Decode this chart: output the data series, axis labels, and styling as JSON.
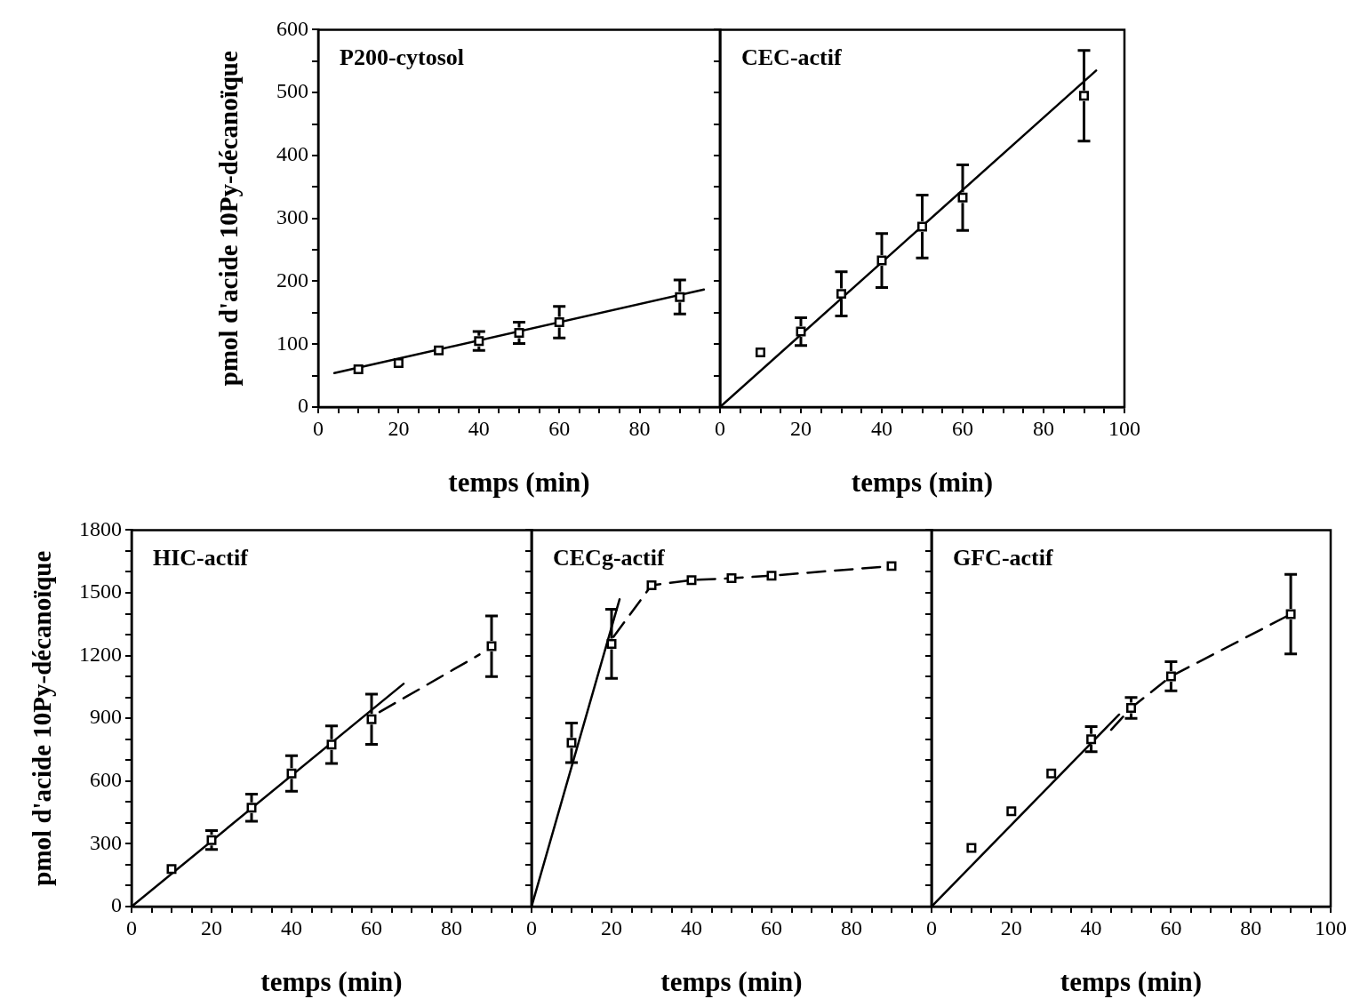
{
  "chart_data": [
    {
      "type": "scatter",
      "title": "P200-cytosol",
      "xlabel": "temps (min)",
      "ylabel": "pmol d'acide 10Py-décanoïque",
      "x": [
        10,
        20,
        30,
        40,
        50,
        60,
        90
      ],
      "xlim": [
        0,
        100
      ],
      "ylim": [
        0,
        600
      ],
      "xticks": [
        0,
        {
          "value": 5,
          "label": null
        },
        {
          "value": 10,
          "label": null
        },
        {
          "value": 15,
          "label": null
        },
        20,
        {
          "value": 25,
          "label": null
        },
        {
          "value": 30,
          "label": null
        },
        {
          "value": 35,
          "label": null
        },
        40,
        {
          "value": 45,
          "label": null
        },
        {
          "value": 50,
          "label": null
        },
        {
          "value": 55,
          "label": null
        },
        60,
        {
          "value": 65,
          "label": null
        },
        {
          "value": 70,
          "label": null
        },
        {
          "value": 75,
          "label": null
        },
        80,
        {
          "value": 85,
          "label": null
        },
        {
          "value": 90,
          "label": null
        },
        {
          "value": 95,
          "label": null
        },
        {
          "value": 100,
          "label": null
        }
      ],
      "yticks": [
        0,
        {
          "value": 50,
          "label": null
        },
        100,
        {
          "value": 150,
          "label": null
        },
        200,
        {
          "value": 250,
          "label": null
        },
        300,
        {
          "value": 350,
          "label": null
        },
        400,
        {
          "value": 450,
          "label": null
        },
        500,
        {
          "value": 550,
          "label": null
        },
        600
      ],
      "series": [
        {
          "type": "scatter",
          "color": "#000000",
          "marker": "square",
          "values": [
            60,
            70,
            90,
            105,
            118,
            135,
            175
          ],
          "errors": [
            null,
            null,
            null,
            15,
            17,
            25,
            27
          ]
        },
        {
          "type": "line",
          "color": "#000000",
          "marker": "none",
          "line_style": "solid",
          "x": [
            4,
            96
          ],
          "values": [
            54,
            187
          ]
        }
      ]
    },
    {
      "type": "scatter",
      "title": "CEC-actif",
      "xlabel": "temps (min)",
      "x": [
        10,
        20,
        30,
        40,
        50,
        60,
        90
      ],
      "xlim": [
        0,
        100
      ],
      "ylim": [
        0,
        600
      ],
      "tick_labels": "x",
      "xticks": [
        0,
        {
          "value": 5,
          "label": null
        },
        {
          "value": 10,
          "label": null
        },
        {
          "value": 15,
          "label": null
        },
        20,
        {
          "value": 25,
          "label": null
        },
        {
          "value": 30,
          "label": null
        },
        {
          "value": 35,
          "label": null
        },
        40,
        {
          "value": 45,
          "label": null
        },
        {
          "value": 50,
          "label": null
        },
        {
          "value": 55,
          "label": null
        },
        60,
        {
          "value": 65,
          "label": null
        },
        {
          "value": 70,
          "label": null
        },
        {
          "value": 75,
          "label": null
        },
        80,
        {
          "value": 85,
          "label": null
        },
        {
          "value": 90,
          "label": null
        },
        {
          "value": 95,
          "label": null
        },
        100
      ],
      "yticks": [
        0,
        {
          "value": 50,
          "label": null
        },
        100,
        {
          "value": 150,
          "label": null
        },
        200,
        {
          "value": 250,
          "label": null
        },
        300,
        {
          "value": 350,
          "label": null
        },
        400,
        {
          "value": 450,
          "label": null
        },
        500,
        {
          "value": 550,
          "label": null
        },
        600
      ],
      "series": [
        {
          "type": "scatter",
          "color": "#000000",
          "marker": "square",
          "values": [
            87,
            120,
            180,
            233,
            287,
            333,
            495
          ],
          "errors": [
            null,
            22,
            35,
            43,
            50,
            52,
            72
          ]
        },
        {
          "type": "line",
          "color": "#000000",
          "marker": "none",
          "line_style": "solid",
          "x": [
            0,
            93
          ],
          "values": [
            0,
            535
          ]
        }
      ]
    },
    {
      "type": "scatter",
      "title": "HIC-actif",
      "xlabel": "temps (min)",
      "ylabel": "pmol d'acide 10Py-décanoïque",
      "x": [
        10,
        20,
        30,
        40,
        50,
        60,
        90
      ],
      "xlim": [
        0,
        100
      ],
      "ylim": [
        0,
        1800
      ],
      "xticks": [
        0,
        {
          "value": 5,
          "label": null
        },
        {
          "value": 10,
          "label": null
        },
        {
          "value": 15,
          "label": null
        },
        20,
        {
          "value": 25,
          "label": null
        },
        {
          "value": 30,
          "label": null
        },
        {
          "value": 35,
          "label": null
        },
        40,
        {
          "value": 45,
          "label": null
        },
        {
          "value": 50,
          "label": null
        },
        {
          "value": 55,
          "label": null
        },
        60,
        {
          "value": 65,
          "label": null
        },
        {
          "value": 70,
          "label": null
        },
        {
          "value": 75,
          "label": null
        },
        80,
        {
          "value": 85,
          "label": null
        },
        {
          "value": 90,
          "label": null
        },
        {
          "value": 95,
          "label": null
        },
        {
          "value": 100,
          "label": null
        }
      ],
      "yticks": [
        0,
        {
          "value": 100,
          "label": null
        },
        {
          "value": 200,
          "label": null
        },
        300,
        {
          "value": 400,
          "label": null
        },
        {
          "value": 500,
          "label": null
        },
        600,
        {
          "value": 700,
          "label": null
        },
        {
          "value": 800,
          "label": null
        },
        900,
        {
          "value": 1000,
          "label": null
        },
        {
          "value": 1100,
          "label": null
        },
        1200,
        {
          "value": 1300,
          "label": null
        },
        {
          "value": 1400,
          "label": null
        },
        1500,
        {
          "value": 1600,
          "label": null
        },
        {
          "value": 1700,
          "label": null
        },
        1800
      ],
      "series": [
        {
          "type": "scatter",
          "color": "#000000",
          "marker": "square",
          "values": [
            180,
            318,
            473,
            636,
            774,
            896,
            1245
          ],
          "errors": [
            null,
            45,
            65,
            85,
            90,
            120,
            145
          ]
        },
        {
          "type": "line",
          "color": "#000000",
          "marker": "none",
          "line_style": "solid",
          "x": [
            0,
            68
          ],
          "values": [
            0,
            1065
          ]
        },
        {
          "type": "line",
          "color": "#000000",
          "marker": "none",
          "line_style": "dashed",
          "x": [
            62,
            87
          ],
          "values": [
            930,
            1205
          ]
        }
      ]
    },
    {
      "type": "scatter",
      "title": "CECg-actif",
      "xlabel": "temps (min)",
      "x": [
        10,
        20,
        30,
        40,
        50,
        60,
        90
      ],
      "xlim": [
        0,
        100
      ],
      "ylim": [
        0,
        1800
      ],
      "tick_labels": "x",
      "xticks": [
        0,
        {
          "value": 5,
          "label": null
        },
        {
          "value": 10,
          "label": null
        },
        {
          "value": 15,
          "label": null
        },
        20,
        {
          "value": 25,
          "label": null
        },
        {
          "value": 30,
          "label": null
        },
        {
          "value": 35,
          "label": null
        },
        40,
        {
          "value": 45,
          "label": null
        },
        {
          "value": 50,
          "label": null
        },
        {
          "value": 55,
          "label": null
        },
        60,
        {
          "value": 65,
          "label": null
        },
        {
          "value": 70,
          "label": null
        },
        {
          "value": 75,
          "label": null
        },
        80,
        {
          "value": 85,
          "label": null
        },
        {
          "value": 90,
          "label": null
        },
        {
          "value": 95,
          "label": null
        },
        {
          "value": 100,
          "label": null
        }
      ],
      "yticks": [
        0,
        {
          "value": 100,
          "label": null
        },
        {
          "value": 200,
          "label": null
        },
        300,
        {
          "value": 400,
          "label": null
        },
        {
          "value": 500,
          "label": null
        },
        600,
        {
          "value": 700,
          "label": null
        },
        {
          "value": 800,
          "label": null
        },
        900,
        {
          "value": 1000,
          "label": null
        },
        {
          "value": 1100,
          "label": null
        },
        1200,
        {
          "value": 1300,
          "label": null
        },
        {
          "value": 1400,
          "label": null
        },
        1500,
        {
          "value": 1600,
          "label": null
        },
        {
          "value": 1700,
          "label": null
        },
        1800
      ],
      "series": [
        {
          "type": "scatter",
          "color": "#000000",
          "marker": "square",
          "values": [
            783,
            1256,
            1536,
            1561,
            1570,
            1582,
            1628
          ],
          "errors": [
            95,
            165,
            null,
            null,
            null,
            null,
            null
          ]
        },
        {
          "type": "line",
          "color": "#000000",
          "marker": "none",
          "line_style": "solid",
          "x": [
            0,
            22
          ],
          "values": [
            0,
            1469
          ]
        },
        {
          "type": "line",
          "color": "#000000",
          "marker": "none",
          "line_style": "dashed",
          "x": [
            20.5,
            30,
            40,
            50,
            60,
            90
          ],
          "values": [
            1290,
            1536,
            1561,
            1570,
            1582,
            1628
          ]
        }
      ]
    },
    {
      "type": "scatter",
      "title": "GFC-actif",
      "xlabel": "temps (min)",
      "x": [
        10,
        20,
        30,
        40,
        50,
        60,
        90
      ],
      "xlim": [
        0,
        100
      ],
      "ylim": [
        0,
        1800
      ],
      "tick_labels": "x",
      "xticks": [
        0,
        {
          "value": 5,
          "label": null
        },
        {
          "value": 10,
          "label": null
        },
        {
          "value": 15,
          "label": null
        },
        20,
        {
          "value": 25,
          "label": null
        },
        {
          "value": 30,
          "label": null
        },
        {
          "value": 35,
          "label": null
        },
        40,
        {
          "value": 45,
          "label": null
        },
        {
          "value": 50,
          "label": null
        },
        {
          "value": 55,
          "label": null
        },
        60,
        {
          "value": 65,
          "label": null
        },
        {
          "value": 70,
          "label": null
        },
        {
          "value": 75,
          "label": null
        },
        80,
        {
          "value": 85,
          "label": null
        },
        {
          "value": 90,
          "label": null
        },
        {
          "value": 95,
          "label": null
        },
        100
      ],
      "yticks": [
        0,
        {
          "value": 100,
          "label": null
        },
        {
          "value": 200,
          "label": null
        },
        300,
        {
          "value": 400,
          "label": null
        },
        {
          "value": 500,
          "label": null
        },
        600,
        {
          "value": 700,
          "label": null
        },
        {
          "value": 800,
          "label": null
        },
        900,
        {
          "value": 1000,
          "label": null
        },
        {
          "value": 1100,
          "label": null
        },
        1200,
        {
          "value": 1300,
          "label": null
        },
        {
          "value": 1400,
          "label": null
        },
        1500,
        {
          "value": 1600,
          "label": null
        },
        {
          "value": 1700,
          "label": null
        },
        1800
      ],
      "series": [
        {
          "type": "scatter",
          "color": "#000000",
          "marker": "square",
          "values": [
            280,
            456,
            636,
            800,
            950,
            1101,
            1398
          ],
          "errors": [
            null,
            null,
            null,
            60,
            50,
            70,
            190
          ]
        },
        {
          "type": "line",
          "color": "#000000",
          "marker": "none",
          "line_style": "solid",
          "x": [
            0,
            47
          ],
          "values": [
            0,
            918
          ]
        },
        {
          "type": "line",
          "color": "#000000",
          "marker": "none",
          "line_style": "dashed",
          "x": [
            45,
            50,
            60,
            90
          ],
          "values": [
            845,
            950,
            1101,
            1398
          ]
        }
      ]
    }
  ]
}
